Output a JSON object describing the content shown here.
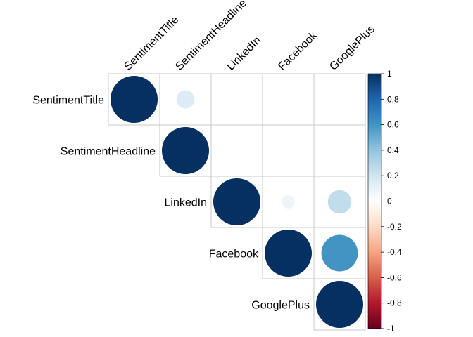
{
  "chart_data": {
    "type": "heatmap",
    "style": "corrplot-upper-circle",
    "variables": [
      "SentimentTitle",
      "SentimentHeadline",
      "LinkedIn",
      "Facebook",
      "GooglePlus"
    ],
    "matrix": [
      [
        1.0,
        0.15,
        0.0,
        0.0,
        0.01
      ],
      [
        0.15,
        1.0,
        0.0,
        0.0,
        0.0
      ],
      [
        0.0,
        0.0,
        1.0,
        0.08,
        0.25
      ],
      [
        0.0,
        0.0,
        0.08,
        1.0,
        0.6
      ],
      [
        0.01,
        0.0,
        0.25,
        0.6,
        1.0
      ]
    ],
    "colorbar": {
      "range": [
        -1,
        1
      ],
      "ticks": [
        "1",
        "0.8",
        "0.6",
        "0.4",
        "0.2",
        "0",
        "-0.2",
        "-0.4",
        "-0.6",
        "-0.8",
        "-1"
      ],
      "colors": [
        "#67001F",
        "#B2182B",
        "#D6604D",
        "#F4A582",
        "#FDDBC7",
        "#FFFFFF",
        "#D1E5F0",
        "#92C5DE",
        "#4393C3",
        "#2166AC",
        "#053061"
      ]
    },
    "grid": true,
    "legend_position": "right"
  }
}
